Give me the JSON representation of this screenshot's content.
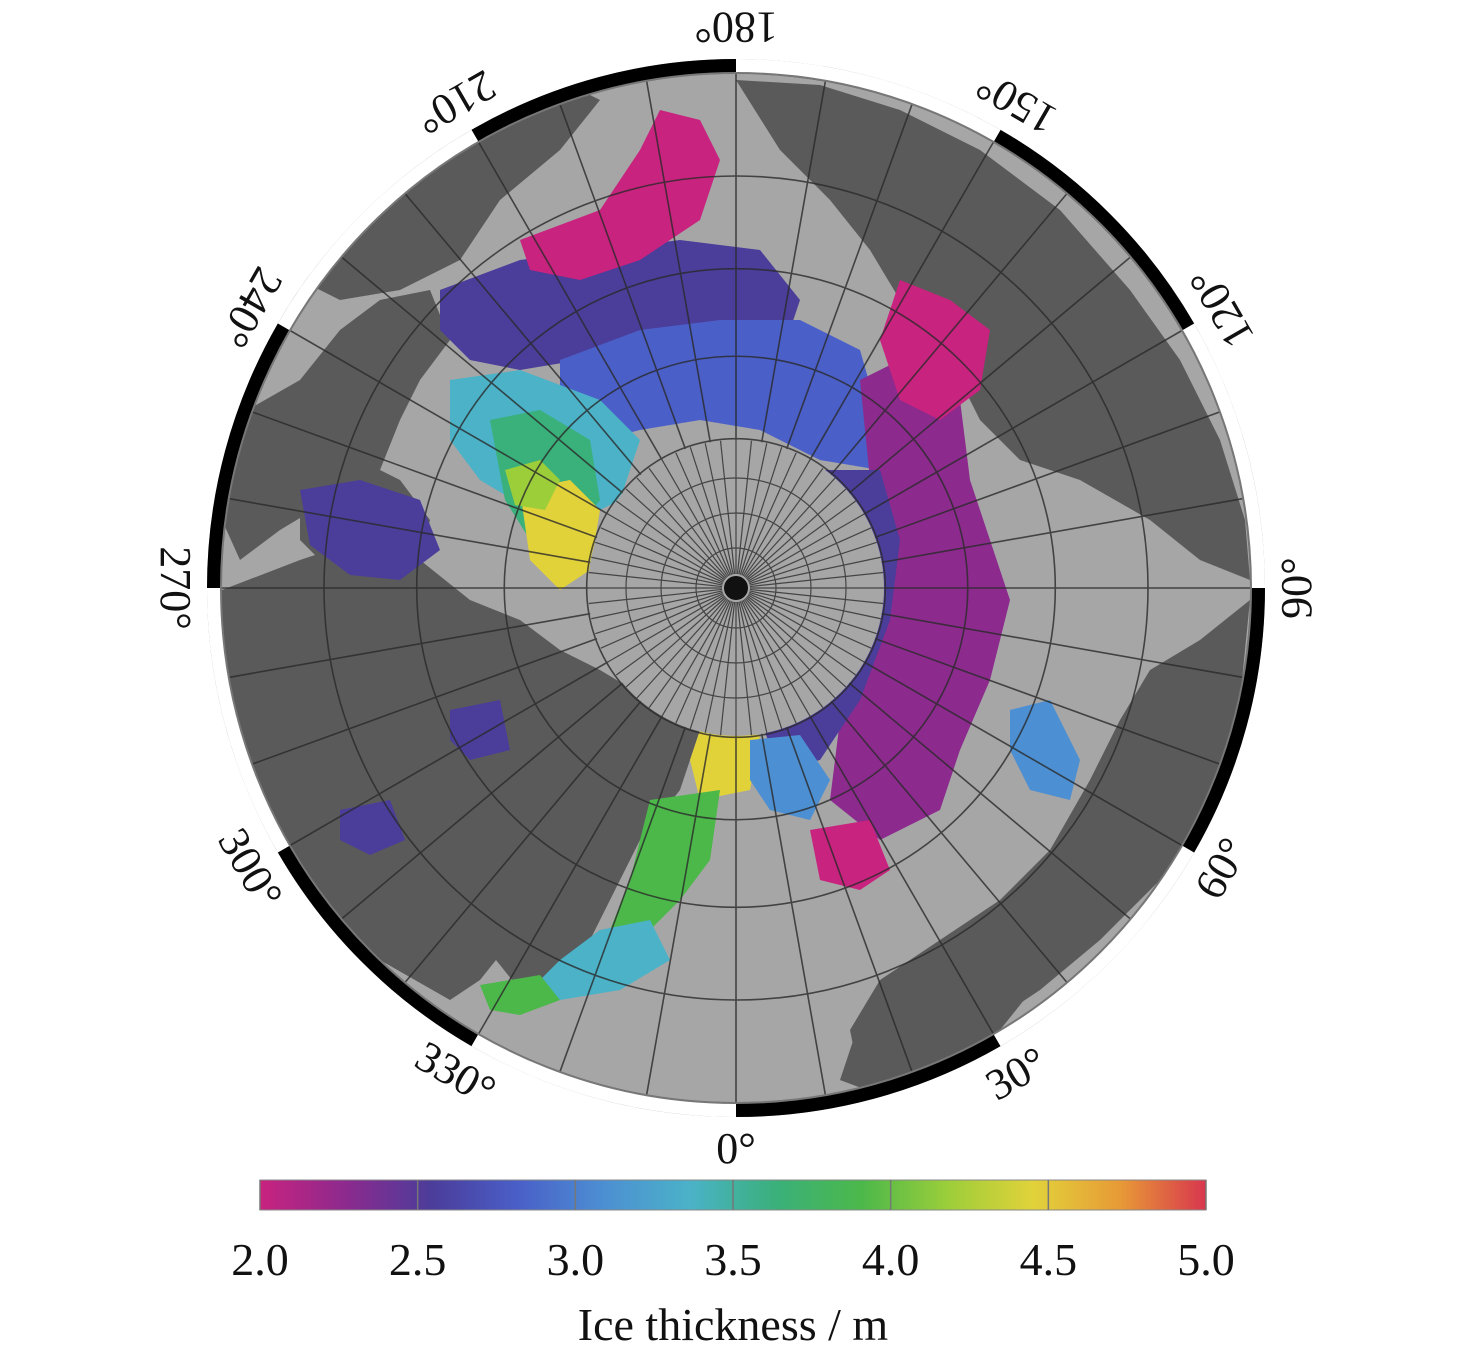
{
  "map": {
    "projection": "north-polar-stereographic",
    "ocean_color": "#a6a6a6",
    "land_color": "#5a5a5a",
    "frame_colors": [
      "#000000",
      "#ffffff"
    ],
    "longitude_labels": [
      {
        "lon": 0,
        "text": "0°"
      },
      {
        "lon": 30,
        "text": "30°"
      },
      {
        "lon": 60,
        "text": "60°"
      },
      {
        "lon": 90,
        "text": "90°"
      },
      {
        "lon": 120,
        "text": "120°"
      },
      {
        "lon": 150,
        "text": "150°"
      },
      {
        "lon": 180,
        "text": "180°"
      },
      {
        "lon": 210,
        "text": "210°"
      },
      {
        "lon": 240,
        "text": "240°"
      },
      {
        "lon": 270,
        "text": "270°"
      },
      {
        "lon": 300,
        "text": "300°"
      },
      {
        "lon": 330,
        "text": "330°"
      }
    ]
  },
  "colorbar": {
    "title": "Ice thickness / m",
    "min": 2.0,
    "max": 5.0,
    "ticks": [
      "2.0",
      "2.5",
      "3.0",
      "3.5",
      "4.0",
      "4.5",
      "5.0"
    ],
    "colors": [
      "#c8237e",
      "#8c2a8e",
      "#4b3d9a",
      "#4a5fc8",
      "#4c8fd2",
      "#4bb2c8",
      "#3ab07a",
      "#4cb84a",
      "#9cce3a",
      "#e2d23a",
      "#e79a36",
      "#d8364e"
    ]
  }
}
